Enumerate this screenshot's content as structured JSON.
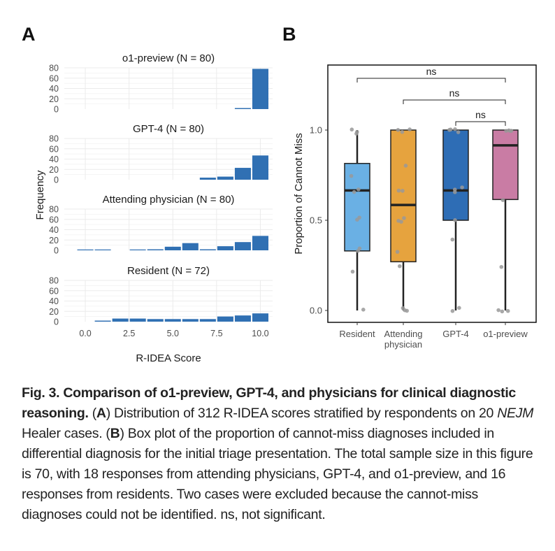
{
  "panel_labels": {
    "a": "A",
    "b": "B"
  },
  "colors": {
    "hist_bar": "#3070b3",
    "grid": "#ebebeb",
    "resident": "#6ab0e4",
    "attending": "#e6a33e",
    "gpt4": "#2e6db5",
    "o1": "#c97ca4",
    "point": "#999999"
  },
  "chart_data": [
    {
      "type": "bar",
      "name": "histograms",
      "xlabel": "R-IDEA Score",
      "ylabel": "Frequency",
      "x_ticks": [
        "0.0",
        "2.5",
        "5.0",
        "7.5",
        "10.0"
      ],
      "x_tick_values": [
        0,
        2.5,
        5,
        7.5,
        10
      ],
      "y_ticks": [
        0,
        20,
        40,
        60,
        80
      ],
      "ylim": [
        0,
        80
      ],
      "bin_centers": [
        0,
        1,
        2,
        3,
        4,
        5,
        6,
        7,
        8,
        9,
        10
      ],
      "panels": [
        {
          "title": "o1-preview (N = 80)",
          "counts": [
            0,
            0,
            0,
            0,
            0,
            0,
            0,
            0,
            0,
            2,
            78
          ]
        },
        {
          "title": "GPT-4 (N = 80)",
          "counts": [
            0,
            0,
            0,
            0,
            0,
            0,
            0,
            4,
            6,
            23,
            47
          ]
        },
        {
          "title": "Attending physician (N = 80)",
          "counts": [
            1,
            1,
            0,
            1,
            2,
            7,
            14,
            2,
            8,
            16,
            28
          ]
        },
        {
          "title": "Resident (N = 72)",
          "counts": [
            0,
            2,
            6,
            6,
            5,
            5,
            5,
            5,
            10,
            12,
            16
          ]
        }
      ]
    },
    {
      "type": "box",
      "name": "boxplot",
      "ylabel": "Proportion of Cannot Miss",
      "y_ticks": [
        "0.0",
        "0.5",
        "1.0"
      ],
      "y_tick_values": [
        0,
        0.5,
        1.0
      ],
      "ylim": [
        -0.07,
        1.37
      ],
      "groups": [
        {
          "label": "Resident",
          "label2": "",
          "q1": 0.33,
          "median": 0.665,
          "q3": 0.815,
          "lo": 0.0,
          "hi": 1.0,
          "points": [
            0.99,
            1.0,
            0.98,
            0.75,
            0.67,
            0.66,
            0.51,
            0.5,
            0.34,
            0.33,
            0.21,
            0.01
          ]
        },
        {
          "label": "Attending",
          "label2": "physician",
          "q1": 0.27,
          "median": 0.585,
          "q3": 1.0,
          "lo": 0.0,
          "hi": 1.0,
          "points": [
            1.0,
            1.0,
            0.99,
            0.8,
            0.67,
            0.66,
            0.51,
            0.5,
            0.49,
            0.33,
            0.25,
            0.01,
            0.0,
            0.0
          ]
        },
        {
          "label": "GPT-4",
          "label2": "",
          "q1": 0.5,
          "median": 0.665,
          "q3": 1.0,
          "lo": 0.0,
          "hi": 1.0,
          "points": [
            1.0,
            1.0,
            1.0,
            0.99,
            0.68,
            0.67,
            0.66,
            0.5,
            0.39,
            0.01,
            0.0
          ]
        },
        {
          "label": "o1-preview",
          "label2": "",
          "q1": 0.615,
          "median": 0.915,
          "q3": 1.0,
          "lo": 0.0,
          "hi": 1.0,
          "points": [
            1.0,
            1.0,
            1.0,
            0.99,
            0.61,
            0.24,
            0.0,
            0.0,
            0.0
          ]
        }
      ],
      "brackets": [
        {
          "from": 0,
          "to": 3,
          "label": "ns"
        },
        {
          "from": 1,
          "to": 3,
          "label": "ns"
        },
        {
          "from": 2,
          "to": 3,
          "label": "ns"
        }
      ]
    }
  ],
  "caption": {
    "title": "Fig. 3. Comparison of o1-preview, GPT-4, and physicians for clinical diagnostic reasoning.",
    "a_pre": " (",
    "a_label": "A",
    "a_text": ") Distribution of 312 R-IDEA scores stratified by respondents on 20 ",
    "journal": "NEJM",
    "a_text2": " Healer cases. (",
    "b_label": "B",
    "b_text": ") Box plot of the proportion of cannot-miss diagnoses included in differential diagnosis for the initial triage presentation. The total sample size in this figure is 70, with 18 responses from attending physicians, GPT-4, and o1-preview, and 16 responses from residents. Two cases were excluded because the cannot-miss diagnoses could not be identified. ns, not significant."
  }
}
